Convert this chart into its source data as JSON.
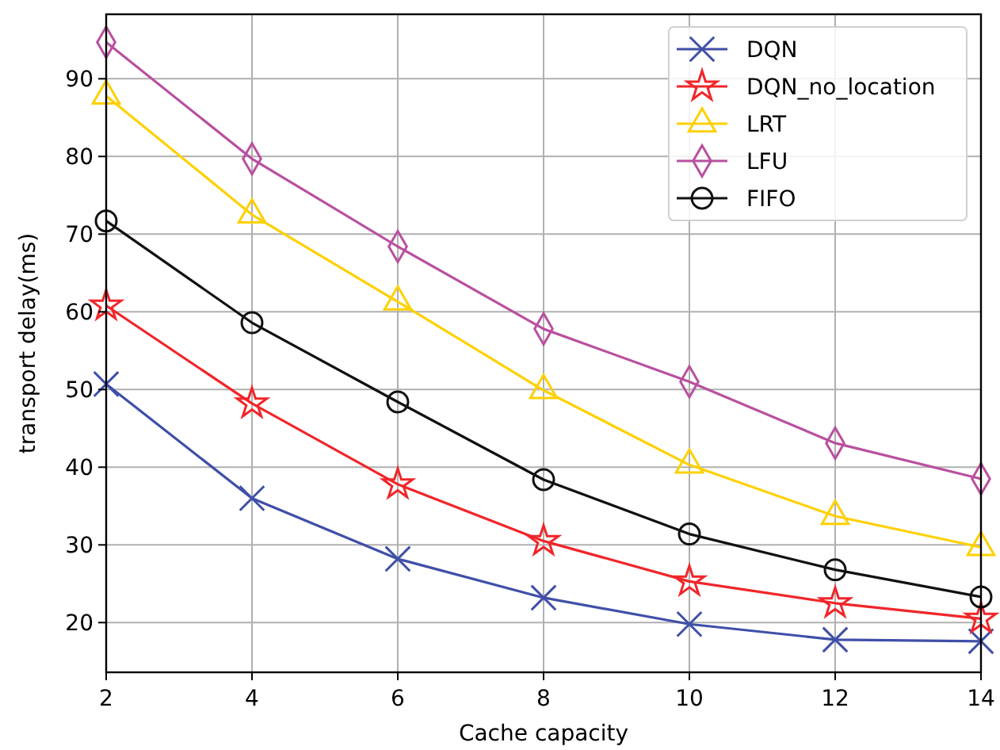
{
  "chart_data": {
    "type": "line",
    "xlabel": "Cache capacity",
    "ylabel": "transport delay(ms)",
    "x": [
      2,
      4,
      6,
      8,
      10,
      12,
      14
    ],
    "xlim": [
      2,
      14
    ],
    "xticks": [
      2,
      4,
      6,
      8,
      10,
      12,
      14
    ],
    "ylim": [
      13.6,
      98.3
    ],
    "yticks": [
      20,
      30,
      40,
      50,
      60,
      70,
      80,
      90
    ],
    "grid": true,
    "legend": "top right",
    "line_style": "solid",
    "series": [
      {
        "name": "DQN",
        "color": "#3f4fa8",
        "marker": "cross",
        "values": [
          50.7,
          36.0,
          28.2,
          23.2,
          19.8,
          17.8,
          17.6
        ]
      },
      {
        "name": "DQN_no_location",
        "color": "#f0262a",
        "marker": "star",
        "values": [
          60.8,
          48.2,
          37.8,
          30.5,
          25.3,
          22.5,
          20.5
        ]
      },
      {
        "name": "LRT",
        "color": "#ffd000",
        "marker": "triangle",
        "values": [
          87.8,
          72.5,
          61.3,
          49.9,
          40.3,
          33.7,
          29.7
        ]
      },
      {
        "name": "LFU",
        "color": "#b9509f",
        "marker": "diamond",
        "values": [
          94.7,
          79.7,
          68.4,
          57.8,
          51.0,
          43.1,
          38.5
        ]
      },
      {
        "name": "FIFO",
        "color": "#111111",
        "marker": "circle",
        "values": [
          71.7,
          58.6,
          48.4,
          38.4,
          31.4,
          26.8,
          23.3
        ]
      }
    ]
  }
}
